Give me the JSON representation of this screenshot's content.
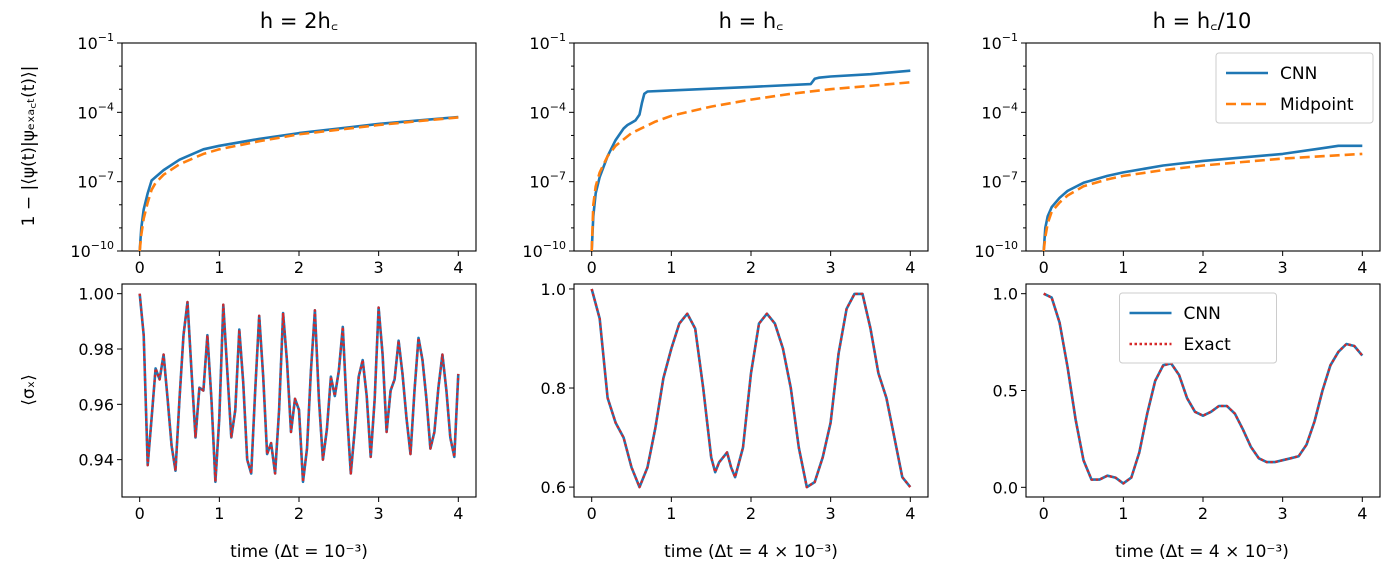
{
  "figure": {
    "x_label_panel_1": "time (Δt = 10⁻³)",
    "x_label_panel_2": "time (Δt = 4 × 10⁻³)",
    "x_label_panel_3": "time (Δt = 4 × 10⁻³)"
  },
  "chart_data": [
    {
      "id": "p1",
      "type": "line",
      "title": "h = 2h_c",
      "title_display": "h = 2h꜀",
      "ylabel": "1 − |⟨ψ(t)|ψ_exact(t)⟩|",
      "ylabel_display": "1 − |⟨ψ(t)|ψₑₓₐ꜀ₜ(t)⟩|",
      "yscale": "log",
      "ylim_log10": [
        -10,
        -1
      ],
      "yticks_log10": [
        -10,
        -7,
        -4,
        -1
      ],
      "xlim": [
        0,
        4
      ],
      "xticks": [
        0,
        1,
        2,
        3,
        4
      ],
      "series": [
        {
          "name": "CNN",
          "color": "#1f77b4",
          "style": "solid",
          "x": [
            0.0,
            0.02,
            0.05,
            0.1,
            0.15,
            0.2,
            0.3,
            0.5,
            0.8,
            1.0,
            1.5,
            2.0,
            2.5,
            3.0,
            3.5,
            4.0
          ],
          "log10y": [
            -10.0,
            -9.0,
            -8.2,
            -7.5,
            -6.95,
            -6.8,
            -6.5,
            -6.05,
            -5.6,
            -5.45,
            -5.15,
            -4.9,
            -4.7,
            -4.5,
            -4.35,
            -4.2
          ]
        },
        {
          "name": "Midpoint",
          "color": "#ff7f0e",
          "style": "dashed",
          "x": [
            0.0,
            0.02,
            0.05,
            0.1,
            0.15,
            0.2,
            0.3,
            0.5,
            0.8,
            1.0,
            1.5,
            2.0,
            2.5,
            3.0,
            3.5,
            4.0
          ],
          "log10y": [
            -10.0,
            -9.3,
            -8.6,
            -7.9,
            -7.35,
            -7.05,
            -6.7,
            -6.25,
            -5.8,
            -5.6,
            -5.25,
            -4.95,
            -4.75,
            -4.55,
            -4.38,
            -4.22
          ]
        }
      ]
    },
    {
      "id": "p2",
      "type": "line",
      "title": "h = h_c",
      "title_display": "h = h꜀",
      "ylabel": "",
      "yscale": "log",
      "ylim_log10": [
        -10,
        -1
      ],
      "yticks_log10": [
        -10,
        -7,
        -4,
        -1
      ],
      "xlim": [
        0,
        4
      ],
      "xticks": [
        0,
        1,
        2,
        3,
        4
      ],
      "series": [
        {
          "name": "CNN",
          "color": "#1f77b4",
          "style": "solid",
          "x": [
            0.0,
            0.02,
            0.05,
            0.1,
            0.2,
            0.3,
            0.4,
            0.45,
            0.5,
            0.55,
            0.6,
            0.63,
            0.66,
            0.7,
            1.0,
            2.0,
            2.75,
            2.8,
            2.85,
            3.0,
            3.5,
            4.0
          ],
          "log10y": [
            -10.0,
            -8.5,
            -7.5,
            -6.8,
            -5.9,
            -5.2,
            -4.7,
            -4.55,
            -4.45,
            -4.35,
            -4.1,
            -3.6,
            -3.2,
            -3.1,
            -3.05,
            -2.9,
            -2.78,
            -2.55,
            -2.5,
            -2.45,
            -2.35,
            -2.2
          ]
        },
        {
          "name": "Midpoint",
          "color": "#ff7f0e",
          "style": "dashed",
          "x": [
            0.0,
            0.02,
            0.05,
            0.1,
            0.2,
            0.3,
            0.5,
            0.8,
            1.0,
            1.5,
            2.0,
            2.5,
            3.0,
            3.5,
            4.0
          ],
          "log10y": [
            -10.0,
            -8.0,
            -7.2,
            -6.6,
            -5.9,
            -5.45,
            -4.9,
            -4.4,
            -4.15,
            -3.75,
            -3.45,
            -3.2,
            -3.0,
            -2.85,
            -2.7
          ]
        }
      ]
    },
    {
      "id": "p3",
      "type": "line",
      "title": "h = h_c/10",
      "title_display": "h = h꜀/10",
      "ylabel": "",
      "yscale": "log",
      "ylim_log10": [
        -10,
        -1
      ],
      "yticks_log10": [
        -10,
        -7,
        -4,
        -1
      ],
      "xlim": [
        0,
        4
      ],
      "xticks": [
        0,
        1,
        2,
        3,
        4
      ],
      "legend": {
        "entries": [
          "CNN",
          "Midpoint"
        ],
        "placement": "upper-right"
      },
      "series": [
        {
          "name": "CNN",
          "color": "#1f77b4",
          "style": "solid",
          "x": [
            0.0,
            0.02,
            0.05,
            0.1,
            0.2,
            0.3,
            0.5,
            0.8,
            1.0,
            1.5,
            2.0,
            2.5,
            3.0,
            3.5,
            3.7,
            4.0
          ],
          "log10y": [
            -10.0,
            -9.0,
            -8.5,
            -8.1,
            -7.7,
            -7.4,
            -7.05,
            -6.75,
            -6.6,
            -6.3,
            -6.1,
            -5.95,
            -5.8,
            -5.55,
            -5.45,
            -5.45
          ]
        },
        {
          "name": "Midpoint",
          "color": "#ff7f0e",
          "style": "dashed",
          "x": [
            0.0,
            0.02,
            0.05,
            0.1,
            0.2,
            0.3,
            0.5,
            0.8,
            1.0,
            1.5,
            2.0,
            2.5,
            3.0,
            3.5,
            4.0
          ],
          "log10y": [
            -10.0,
            -9.4,
            -8.8,
            -8.3,
            -7.9,
            -7.6,
            -7.2,
            -6.9,
            -6.75,
            -6.5,
            -6.3,
            -6.15,
            -6.0,
            -5.9,
            -5.8
          ]
        }
      ]
    },
    {
      "id": "p4",
      "type": "line",
      "title": "",
      "ylabel": "⟨σ_x⟩",
      "ylabel_display": "⟨σₓ⟩",
      "yscale": "linear",
      "ylim": [
        0.9265,
        1.0035
      ],
      "yticks": [
        0.94,
        0.96,
        0.98,
        1.0
      ],
      "ytick_labels": [
        "0.94",
        "0.96",
        "0.98",
        "1.00"
      ],
      "xlim": [
        0,
        4
      ],
      "xticks": [
        0,
        1,
        2,
        3,
        4
      ],
      "series": [
        {
          "name": "CNN",
          "color": "#1f77b4",
          "style": "solid",
          "x": [
            0.0,
            0.05,
            0.1,
            0.15,
            0.2,
            0.25,
            0.3,
            0.35,
            0.4,
            0.45,
            0.5,
            0.55,
            0.6,
            0.65,
            0.7,
            0.75,
            0.8,
            0.85,
            0.9,
            0.95,
            1.0,
            1.05,
            1.1,
            1.15,
            1.2,
            1.25,
            1.3,
            1.35,
            1.4,
            1.45,
            1.5,
            1.55,
            1.6,
            1.65,
            1.7,
            1.75,
            1.8,
            1.85,
            1.9,
            1.95,
            2.0,
            2.05,
            2.1,
            2.15,
            2.2,
            2.25,
            2.3,
            2.35,
            2.4,
            2.45,
            2.5,
            2.55,
            2.6,
            2.65,
            2.7,
            2.75,
            2.8,
            2.85,
            2.9,
            2.95,
            3.0,
            3.05,
            3.1,
            3.15,
            3.2,
            3.25,
            3.3,
            3.35,
            3.4,
            3.45,
            3.5,
            3.55,
            3.6,
            3.65,
            3.7,
            3.75,
            3.8,
            3.85,
            3.9,
            3.95,
            4.0
          ],
          "values": [
            1.0,
            0.985,
            0.938,
            0.955,
            0.973,
            0.969,
            0.978,
            0.962,
            0.945,
            0.936,
            0.962,
            0.985,
            0.997,
            0.972,
            0.948,
            0.966,
            0.965,
            0.985,
            0.962,
            0.932,
            0.955,
            0.996,
            0.972,
            0.948,
            0.958,
            0.987,
            0.968,
            0.94,
            0.935,
            0.965,
            0.992,
            0.97,
            0.942,
            0.946,
            0.935,
            0.958,
            0.993,
            0.975,
            0.95,
            0.962,
            0.958,
            0.932,
            0.944,
            0.972,
            0.994,
            0.962,
            0.94,
            0.951,
            0.97,
            0.963,
            0.972,
            0.988,
            0.958,
            0.935,
            0.951,
            0.97,
            0.976,
            0.963,
            0.941,
            0.962,
            0.995,
            0.978,
            0.95,
            0.965,
            0.969,
            0.983,
            0.971,
            0.955,
            0.942,
            0.965,
            0.984,
            0.976,
            0.962,
            0.944,
            0.95,
            0.966,
            0.978,
            0.965,
            0.948,
            0.941,
            0.971
          ]
        },
        {
          "name": "Exact",
          "color": "#d62728",
          "style": "dotted",
          "same_as": "CNN"
        }
      ]
    },
    {
      "id": "p5",
      "type": "line",
      "title": "",
      "ylabel": "",
      "yscale": "linear",
      "ylim": [
        0.58,
        1.01
      ],
      "yticks": [
        0.6,
        0.8,
        1.0
      ],
      "ytick_labels": [
        "0.6",
        "0.8",
        "1.0"
      ],
      "xlim": [
        0,
        4
      ],
      "xticks": [
        0,
        1,
        2,
        3,
        4
      ],
      "series": [
        {
          "name": "CNN",
          "color": "#1f77b4",
          "style": "solid",
          "x": [
            0.0,
            0.1,
            0.2,
            0.3,
            0.4,
            0.5,
            0.6,
            0.7,
            0.8,
            0.9,
            1.0,
            1.1,
            1.2,
            1.3,
            1.4,
            1.5,
            1.55,
            1.6,
            1.7,
            1.75,
            1.8,
            1.9,
            2.0,
            2.1,
            2.2,
            2.3,
            2.4,
            2.5,
            2.6,
            2.7,
            2.8,
            2.9,
            3.0,
            3.1,
            3.2,
            3.3,
            3.4,
            3.5,
            3.6,
            3.7,
            3.8,
            3.9,
            4.0
          ],
          "values": [
            1.0,
            0.94,
            0.78,
            0.73,
            0.7,
            0.64,
            0.6,
            0.64,
            0.72,
            0.82,
            0.88,
            0.93,
            0.95,
            0.92,
            0.8,
            0.66,
            0.63,
            0.65,
            0.67,
            0.64,
            0.62,
            0.68,
            0.83,
            0.93,
            0.95,
            0.93,
            0.88,
            0.8,
            0.68,
            0.6,
            0.61,
            0.66,
            0.73,
            0.87,
            0.96,
            0.99,
            0.99,
            0.92,
            0.83,
            0.78,
            0.7,
            0.62,
            0.6
          ]
        },
        {
          "name": "Exact",
          "color": "#d62728",
          "style": "dotted",
          "same_as": "CNN"
        }
      ]
    },
    {
      "id": "p6",
      "type": "line",
      "title": "",
      "ylabel": "",
      "yscale": "linear",
      "ylim": [
        -0.05,
        1.05
      ],
      "yticks": [
        0.0,
        0.5,
        1.0
      ],
      "ytick_labels": [
        "0.0",
        "0.5",
        "1.0"
      ],
      "xlim": [
        0,
        4
      ],
      "xticks": [
        0,
        1,
        2,
        3,
        4
      ],
      "legend": {
        "entries": [
          "CNN",
          "Exact"
        ],
        "placement": "upper-center"
      },
      "series": [
        {
          "name": "CNN",
          "color": "#1f77b4",
          "style": "solid",
          "x": [
            0.0,
            0.1,
            0.2,
            0.3,
            0.4,
            0.5,
            0.6,
            0.7,
            0.8,
            0.9,
            1.0,
            1.1,
            1.2,
            1.3,
            1.4,
            1.5,
            1.6,
            1.7,
            1.8,
            1.9,
            2.0,
            2.1,
            2.2,
            2.3,
            2.4,
            2.5,
            2.6,
            2.7,
            2.8,
            2.9,
            3.0,
            3.1,
            3.2,
            3.3,
            3.4,
            3.5,
            3.6,
            3.7,
            3.8,
            3.9,
            4.0
          ],
          "values": [
            1.0,
            0.98,
            0.85,
            0.62,
            0.35,
            0.14,
            0.04,
            0.04,
            0.06,
            0.05,
            0.02,
            0.05,
            0.18,
            0.38,
            0.55,
            0.63,
            0.64,
            0.58,
            0.46,
            0.39,
            0.37,
            0.39,
            0.42,
            0.42,
            0.38,
            0.3,
            0.21,
            0.15,
            0.13,
            0.13,
            0.14,
            0.15,
            0.16,
            0.22,
            0.34,
            0.5,
            0.63,
            0.7,
            0.74,
            0.73,
            0.68
          ]
        },
        {
          "name": "Exact",
          "color": "#d62728",
          "style": "dotted",
          "same_as": "CNN"
        }
      ]
    }
  ]
}
